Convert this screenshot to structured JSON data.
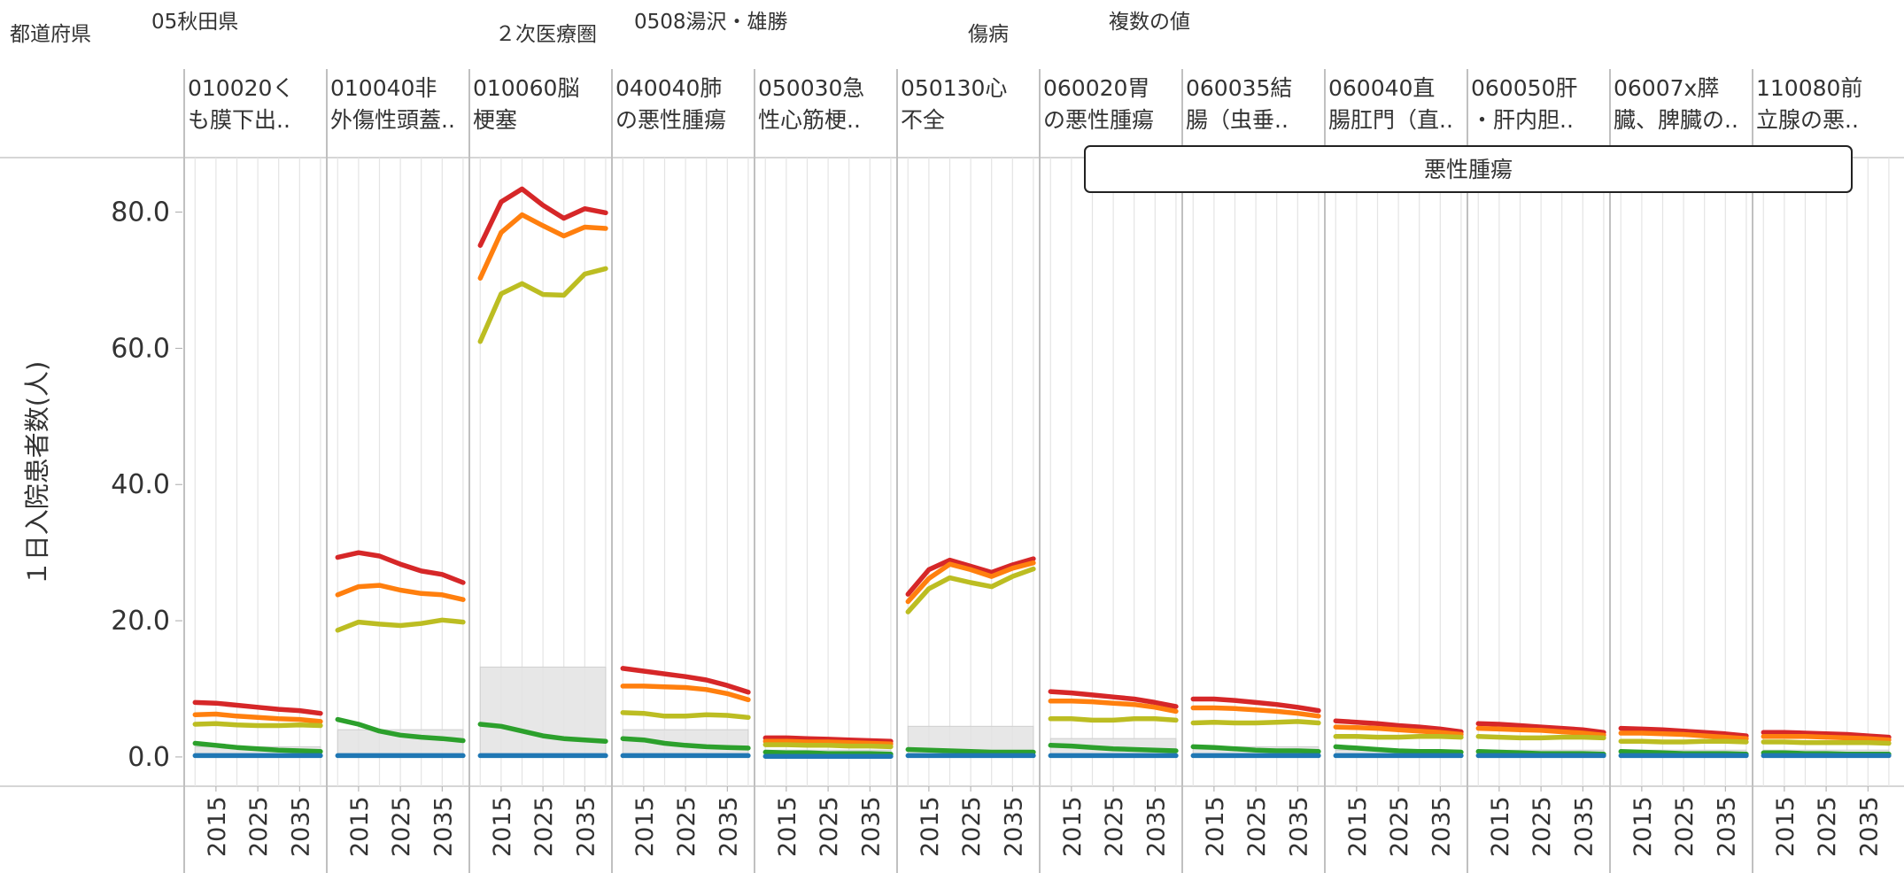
{
  "filters": [
    {
      "label": "都道府県",
      "value": "05秋田県"
    },
    {
      "label": "２次医療圏",
      "value": "0508湯沢・雄勝"
    },
    {
      "label": "傷病",
      "value": "複数の値"
    }
  ],
  "chart_data": {
    "type": "line",
    "ylabel": "１日入院患者数(人)",
    "annotation": "悪性腫瘍",
    "x": [
      2010,
      2015,
      2020,
      2025,
      2030,
      2035,
      2040
    ],
    "xlim": [
      2007.4,
      2041.5
    ],
    "xticks": [
      2015,
      2025,
      2035
    ],
    "ylim": [
      -4.3,
      88
    ],
    "yticks": [
      {
        "value": 0,
        "label": "0.0"
      },
      {
        "value": 20,
        "label": "20.0"
      },
      {
        "value": 40,
        "label": "40.0"
      },
      {
        "value": 60,
        "label": "60.0"
      },
      {
        "value": 80,
        "label": "80.0"
      }
    ],
    "band_color": "#e3e3e3",
    "panels": [
      {
        "label": [
          "010020く",
          "も膜下出.."
        ],
        "band": 1.5,
        "series": [
          {
            "color": "#d62728",
            "values": [
              8.0,
              7.9,
              7.6,
              7.3,
              7.0,
              6.8,
              6.4
            ]
          },
          {
            "color": "#ff7f0e",
            "values": [
              6.2,
              6.3,
              6.0,
              5.8,
              5.6,
              5.5,
              5.2
            ]
          },
          {
            "color": "#bcbd22",
            "values": [
              4.8,
              4.9,
              4.7,
              4.6,
              4.6,
              4.7,
              4.6
            ]
          },
          {
            "color": "#2ca02c",
            "values": [
              2.0,
              1.7,
              1.4,
              1.2,
              1.0,
              0.9,
              0.8
            ]
          },
          {
            "color": "#1f77b4",
            "values": [
              0.2,
              0.2,
              0.2,
              0.2,
              0.2,
              0.2,
              0.2
            ]
          }
        ]
      },
      {
        "label": [
          "010040非",
          "外傷性頭蓋.."
        ],
        "band": 4.0,
        "series": [
          {
            "color": "#d62728",
            "values": [
              29.3,
              30.0,
              29.5,
              28.3,
              27.3,
              26.8,
              25.6
            ]
          },
          {
            "color": "#ff7f0e",
            "values": [
              23.8,
              25.0,
              25.2,
              24.5,
              24.0,
              23.8,
              23.1
            ]
          },
          {
            "color": "#bcbd22",
            "values": [
              18.6,
              19.8,
              19.5,
              19.3,
              19.6,
              20.1,
              19.8
            ]
          },
          {
            "color": "#2ca02c",
            "values": [
              5.5,
              4.8,
              3.8,
              3.2,
              2.9,
              2.7,
              2.4
            ]
          },
          {
            "color": "#1f77b4",
            "values": [
              0.2,
              0.2,
              0.2,
              0.2,
              0.2,
              0.2,
              0.2
            ]
          }
        ]
      },
      {
        "label": [
          "010060脳",
          "梗塞"
        ],
        "band": 13.2,
        "series": [
          {
            "color": "#d62728",
            "values": [
              75.1,
              81.5,
              83.4,
              81.0,
              79.1,
              80.5,
              79.9
            ]
          },
          {
            "color": "#ff7f0e",
            "values": [
              70.3,
              77.0,
              79.6,
              78.0,
              76.5,
              77.8,
              77.6
            ]
          },
          {
            "color": "#bcbd22",
            "values": [
              61.0,
              68.0,
              69.5,
              67.9,
              67.8,
              70.9,
              71.7
            ]
          },
          {
            "color": "#2ca02c",
            "values": [
              4.8,
              4.5,
              3.8,
              3.1,
              2.7,
              2.5,
              2.3
            ]
          },
          {
            "color": "#1f77b4",
            "values": [
              0.2,
              0.2,
              0.2,
              0.2,
              0.2,
              0.2,
              0.2
            ]
          }
        ]
      },
      {
        "label": [
          "040040肺",
          "の悪性腫瘍"
        ],
        "band": 4.0,
        "series": [
          {
            "color": "#d62728",
            "values": [
              13.0,
              12.6,
              12.2,
              11.8,
              11.3,
              10.5,
              9.5
            ]
          },
          {
            "color": "#ff7f0e",
            "values": [
              10.4,
              10.4,
              10.3,
              10.2,
              9.9,
              9.3,
              8.4
            ]
          },
          {
            "color": "#bcbd22",
            "values": [
              6.5,
              6.4,
              6.0,
              6.0,
              6.2,
              6.1,
              5.8
            ]
          },
          {
            "color": "#2ca02c",
            "values": [
              2.7,
              2.5,
              2.0,
              1.7,
              1.5,
              1.4,
              1.3
            ]
          },
          {
            "color": "#1f77b4",
            "values": [
              0.2,
              0.2,
              0.2,
              0.2,
              0.2,
              0.2,
              0.2
            ]
          }
        ]
      },
      {
        "label": [
          "050030急",
          "性心筋梗.."
        ],
        "band": 1.0,
        "series": [
          {
            "color": "#d62728",
            "values": [
              2.8,
              2.8,
              2.7,
              2.6,
              2.5,
              2.4,
              2.3
            ]
          },
          {
            "color": "#ff7f0e",
            "values": [
              2.3,
              2.3,
              2.2,
              2.2,
              2.1,
              2.0,
              1.9
            ]
          },
          {
            "color": "#bcbd22",
            "values": [
              1.8,
              1.8,
              1.7,
              1.7,
              1.6,
              1.6,
              1.5
            ]
          },
          {
            "color": "#2ca02c",
            "values": [
              0.7,
              0.6,
              0.6,
              0.5,
              0.5,
              0.5,
              0.4
            ]
          },
          {
            "color": "#1f77b4",
            "values": [
              0.1,
              0.1,
              0.1,
              0.1,
              0.1,
              0.1,
              0.1
            ]
          }
        ]
      },
      {
        "label": [
          "050130心",
          "不全"
        ],
        "band": 4.5,
        "series": [
          {
            "color": "#d62728",
            "values": [
              23.9,
              27.5,
              28.9,
              28.0,
              27.1,
              28.2,
              29.1
            ]
          },
          {
            "color": "#ff7f0e",
            "values": [
              22.8,
              26.2,
              28.3,
              27.5,
              26.5,
              27.7,
              28.5
            ]
          },
          {
            "color": "#bcbd22",
            "values": [
              21.3,
              24.7,
              26.3,
              25.6,
              25.0,
              26.5,
              27.6
            ]
          },
          {
            "color": "#2ca02c",
            "values": [
              1.1,
              1.0,
              0.9,
              0.8,
              0.7,
              0.7,
              0.7
            ]
          },
          {
            "color": "#1f77b4",
            "values": [
              0.2,
              0.2,
              0.2,
              0.2,
              0.2,
              0.2,
              0.2
            ]
          }
        ]
      },
      {
        "label": [
          "060020胃",
          "の悪性腫瘍"
        ],
        "band": 2.7,
        "series": [
          {
            "color": "#d62728",
            "values": [
              9.6,
              9.4,
              9.1,
              8.8,
              8.5,
              8.0,
              7.4
            ]
          },
          {
            "color": "#ff7f0e",
            "values": [
              8.2,
              8.2,
              8.1,
              7.9,
              7.7,
              7.3,
              6.7
            ]
          },
          {
            "color": "#bcbd22",
            "values": [
              5.6,
              5.6,
              5.4,
              5.4,
              5.6,
              5.6,
              5.4
            ]
          },
          {
            "color": "#2ca02c",
            "values": [
              1.7,
              1.6,
              1.4,
              1.2,
              1.1,
              1.0,
              0.9
            ]
          },
          {
            "color": "#1f77b4",
            "values": [
              0.2,
              0.2,
              0.2,
              0.2,
              0.2,
              0.2,
              0.2
            ]
          }
        ]
      },
      {
        "label": [
          "060035結",
          "腸（虫垂.."
        ],
        "band": 1.5,
        "series": [
          {
            "color": "#d62728",
            "values": [
              8.5,
              8.5,
              8.3,
              8.0,
              7.7,
              7.3,
              6.8
            ]
          },
          {
            "color": "#ff7f0e",
            "values": [
              7.2,
              7.2,
              7.1,
              6.9,
              6.7,
              6.4,
              6.0
            ]
          },
          {
            "color": "#bcbd22",
            "values": [
              5.0,
              5.1,
              5.0,
              5.0,
              5.1,
              5.2,
              5.0
            ]
          },
          {
            "color": "#2ca02c",
            "values": [
              1.5,
              1.4,
              1.2,
              1.0,
              0.9,
              0.9,
              0.8
            ]
          },
          {
            "color": "#1f77b4",
            "values": [
              0.2,
              0.2,
              0.2,
              0.2,
              0.2,
              0.2,
              0.2
            ]
          }
        ]
      },
      {
        "label": [
          "060040直",
          "腸肛門（直.."
        ],
        "band": 1.0,
        "series": [
          {
            "color": "#d62728",
            "values": [
              5.3,
              5.1,
              4.9,
              4.6,
              4.4,
              4.1,
              3.7
            ]
          },
          {
            "color": "#ff7f0e",
            "values": [
              4.4,
              4.3,
              4.2,
              4.0,
              3.8,
              3.6,
              3.3
            ]
          },
          {
            "color": "#bcbd22",
            "values": [
              3.0,
              3.0,
              2.9,
              2.9,
              3.0,
              3.0,
              2.9
            ]
          },
          {
            "color": "#2ca02c",
            "values": [
              1.5,
              1.3,
              1.1,
              0.9,
              0.8,
              0.8,
              0.7
            ]
          },
          {
            "color": "#1f77b4",
            "values": [
              0.2,
              0.2,
              0.2,
              0.2,
              0.2,
              0.2,
              0.2
            ]
          }
        ]
      },
      {
        "label": [
          "060050肝",
          "・肝内胆.."
        ],
        "band": 1.0,
        "series": [
          {
            "color": "#d62728",
            "values": [
              4.9,
              4.8,
              4.6,
              4.4,
              4.2,
              4.0,
              3.6
            ]
          },
          {
            "color": "#ff7f0e",
            "values": [
              4.2,
              4.1,
              4.0,
              3.9,
              3.7,
              3.5,
              3.2
            ]
          },
          {
            "color": "#bcbd22",
            "values": [
              3.0,
              2.9,
              2.8,
              2.8,
              2.9,
              2.9,
              2.8
            ]
          },
          {
            "color": "#2ca02c",
            "values": [
              0.8,
              0.7,
              0.6,
              0.5,
              0.5,
              0.5,
              0.4
            ]
          },
          {
            "color": "#1f77b4",
            "values": [
              0.2,
              0.2,
              0.2,
              0.2,
              0.2,
              0.2,
              0.2
            ]
          }
        ]
      },
      {
        "label": [
          "06007x膵",
          "臓、脾臓の.."
        ],
        "band": 1.0,
        "series": [
          {
            "color": "#d62728",
            "values": [
              4.2,
              4.1,
              4.0,
              3.8,
              3.6,
              3.4,
              3.1
            ]
          },
          {
            "color": "#ff7f0e",
            "values": [
              3.5,
              3.5,
              3.4,
              3.3,
              3.1,
              2.9,
              2.7
            ]
          },
          {
            "color": "#bcbd22",
            "values": [
              2.3,
              2.3,
              2.2,
              2.2,
              2.3,
              2.3,
              2.2
            ]
          },
          {
            "color": "#2ca02c",
            "values": [
              0.8,
              0.7,
              0.6,
              0.5,
              0.5,
              0.5,
              0.4
            ]
          },
          {
            "color": "#1f77b4",
            "values": [
              0.2,
              0.2,
              0.2,
              0.2,
              0.2,
              0.2,
              0.2
            ]
          }
        ]
      },
      {
        "label": [
          "110080前",
          "立腺の悪.."
        ],
        "band": 1.0,
        "series": [
          {
            "color": "#d62728",
            "values": [
              3.6,
              3.6,
              3.5,
              3.4,
              3.3,
              3.1,
              2.9
            ]
          },
          {
            "color": "#ff7f0e",
            "values": [
              3.0,
              3.0,
              3.0,
              2.9,
              2.8,
              2.7,
              2.5
            ]
          },
          {
            "color": "#bcbd22",
            "values": [
              2.2,
              2.2,
              2.1,
              2.1,
              2.1,
              2.1,
              2.0
            ]
          },
          {
            "color": "#2ca02c",
            "values": [
              0.6,
              0.6,
              0.5,
              0.5,
              0.4,
              0.4,
              0.4
            ]
          },
          {
            "color": "#1f77b4",
            "values": [
              0.2,
              0.2,
              0.2,
              0.2,
              0.2,
              0.2,
              0.2
            ]
          }
        ]
      }
    ]
  }
}
